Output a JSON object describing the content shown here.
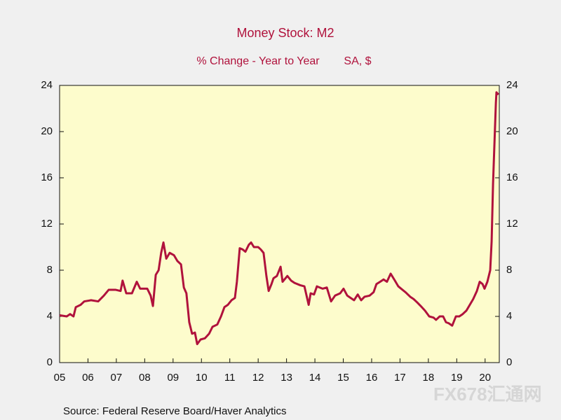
{
  "chart_data": {
    "type": "line",
    "title": "Money Stock: M2",
    "subtitle": "% Change - Year to Year",
    "units": "SA, $",
    "source": "Source:  Federal Reserve Board/Haver Analytics",
    "watermark": "FX678汇通网",
    "xlim": [
      2005,
      2020.5
    ],
    "ylim": [
      0,
      24
    ],
    "yticks": [
      0,
      4,
      8,
      12,
      16,
      20,
      24
    ],
    "xticks": [
      {
        "value": 2005,
        "label": "05"
      },
      {
        "value": 2006,
        "label": "06"
      },
      {
        "value": 2007,
        "label": "07"
      },
      {
        "value": 2008,
        "label": "08"
      },
      {
        "value": 2009,
        "label": "09"
      },
      {
        "value": 2010,
        "label": "10"
      },
      {
        "value": 2011,
        "label": "11"
      },
      {
        "value": 2012,
        "label": "12"
      },
      {
        "value": 2013,
        "label": "13"
      },
      {
        "value": 2014,
        "label": "14"
      },
      {
        "value": 2015,
        "label": "15"
      },
      {
        "value": 2016,
        "label": "16"
      },
      {
        "value": 2017,
        "label": "17"
      },
      {
        "value": 2018,
        "label": "18"
      },
      {
        "value": 2019,
        "label": "19"
      },
      {
        "value": 2020,
        "label": "20"
      }
    ],
    "color": "#b0123c",
    "x": [
      2005.0,
      2005.25,
      2005.37,
      2005.49,
      2005.57,
      2005.74,
      2005.87,
      2006.11,
      2006.36,
      2006.56,
      2006.73,
      2006.98,
      2007.15,
      2007.22,
      2007.35,
      2007.55,
      2007.72,
      2007.84,
      2008.09,
      2008.21,
      2008.29,
      2008.39,
      2008.49,
      2008.58,
      2008.66,
      2008.76,
      2008.88,
      2009.03,
      2009.15,
      2009.28,
      2009.38,
      2009.47,
      2009.57,
      2009.67,
      2009.77,
      2009.85,
      2009.97,
      2010.12,
      2010.27,
      2010.39,
      2010.56,
      2010.69,
      2010.81,
      2010.93,
      2011.06,
      2011.18,
      2011.25,
      2011.35,
      2011.45,
      2011.55,
      2011.67,
      2011.75,
      2011.85,
      2012.0,
      2012.09,
      2012.19,
      2012.29,
      2012.37,
      2012.47,
      2012.54,
      2012.66,
      2012.79,
      2012.86,
      2013.03,
      2013.16,
      2013.28,
      2013.48,
      2013.63,
      2013.78,
      2013.85,
      2013.97,
      2014.07,
      2014.27,
      2014.42,
      2014.57,
      2014.71,
      2014.89,
      2015.01,
      2015.14,
      2015.26,
      2015.38,
      2015.51,
      2015.63,
      2015.75,
      2015.93,
      2016.07,
      2016.17,
      2016.3,
      2016.42,
      2016.54,
      2016.67,
      2016.82,
      2016.94,
      2017.04,
      2017.19,
      2017.36,
      2017.48,
      2017.61,
      2017.73,
      2017.88,
      2018.03,
      2018.18,
      2018.27,
      2018.4,
      2018.52,
      2018.62,
      2018.72,
      2018.84,
      2018.97,
      2019.09,
      2019.21,
      2019.34,
      2019.46,
      2019.58,
      2019.71,
      2019.81,
      2019.91,
      2019.98,
      2020.08,
      2020.18,
      2020.23,
      2020.28,
      2020.33,
      2020.38,
      2020.4,
      2020.47
    ],
    "values": [
      4.1,
      4.0,
      4.2,
      4.0,
      4.8,
      5.0,
      5.3,
      5.4,
      5.3,
      5.8,
      6.3,
      6.3,
      6.2,
      7.1,
      6.0,
      6.0,
      7.0,
      6.4,
      6.4,
      5.8,
      4.9,
      7.6,
      8.0,
      9.5,
      10.4,
      9.0,
      9.5,
      9.3,
      8.8,
      8.5,
      6.5,
      6.0,
      3.5,
      2.5,
      2.6,
      1.6,
      2.0,
      2.1,
      2.5,
      3.1,
      3.3,
      4.0,
      4.8,
      5.0,
      5.4,
      5.6,
      7.0,
      9.9,
      9.8,
      9.6,
      10.2,
      10.4,
      10.0,
      10.0,
      9.8,
      9.5,
      7.5,
      6.2,
      6.8,
      7.3,
      7.5,
      8.3,
      7.0,
      7.5,
      7.1,
      6.9,
      6.7,
      6.6,
      5.0,
      6.0,
      5.9,
      6.6,
      6.4,
      6.5,
      5.3,
      5.8,
      6.0,
      6.4,
      5.8,
      5.6,
      5.4,
      5.9,
      5.4,
      5.7,
      5.8,
      6.1,
      6.8,
      7.0,
      7.2,
      7.0,
      7.7,
      7.1,
      6.6,
      6.4,
      6.1,
      5.7,
      5.5,
      5.2,
      4.9,
      4.5,
      4.0,
      3.9,
      3.7,
      4.0,
      4.0,
      3.5,
      3.4,
      3.2,
      4.0,
      4.0,
      4.2,
      4.5,
      5.0,
      5.5,
      6.2,
      7.0,
      6.8,
      6.4,
      7.0,
      8.0,
      10.5,
      15.5,
      19.0,
      22.5,
      23.4,
      23.2
    ]
  }
}
